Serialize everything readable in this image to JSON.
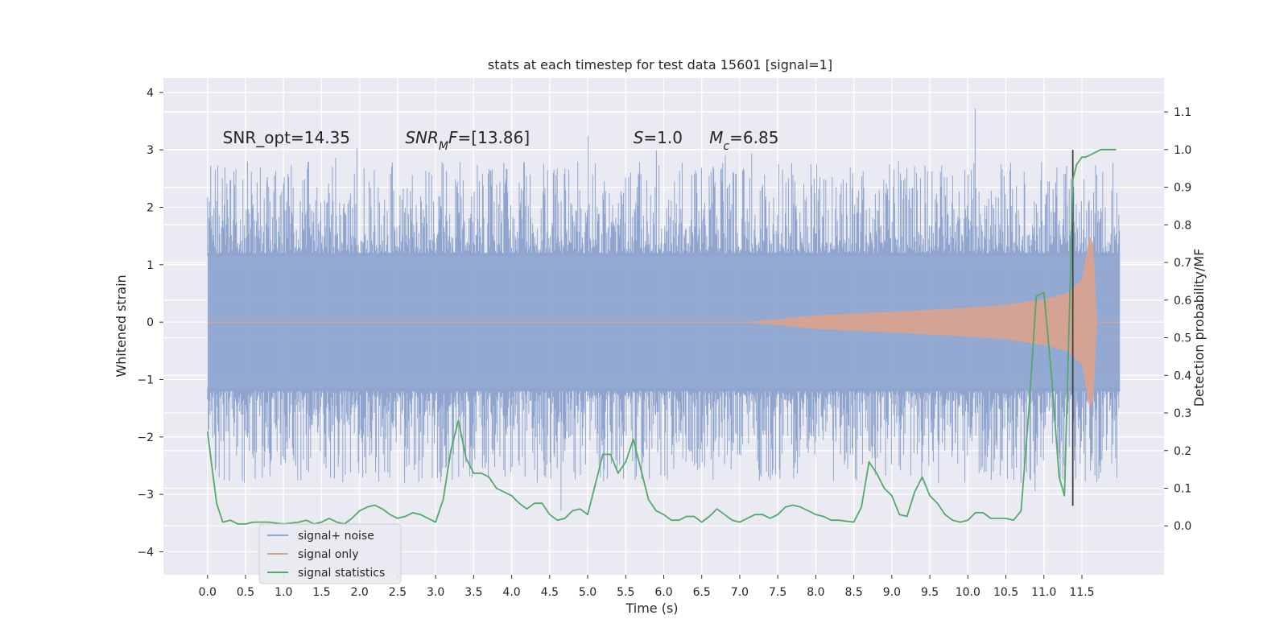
{
  "chart_data": {
    "type": "line",
    "title": "stats at each timestep for test data 15601 [signal=1]",
    "xlabel": "Time (s)",
    "ylabel_left": "Whitened strain",
    "ylabel_right": "Detection probability/MF",
    "xlim": [
      -0.58,
      12.58
    ],
    "ylim_left": [
      -4.4,
      4.25
    ],
    "ylim_right": [
      -0.13,
      1.19
    ],
    "xticks": [
      0.0,
      0.5,
      1.0,
      1.5,
      2.0,
      2.5,
      3.0,
      3.5,
      4.0,
      4.5,
      5.0,
      5.5,
      6.0,
      6.5,
      7.0,
      7.5,
      8.0,
      8.5,
      9.0,
      9.5,
      10.0,
      10.5,
      11.0,
      11.5
    ],
    "xtick_labels": [
      "0.0",
      "0.5",
      "1.0",
      "1.5",
      "2.0",
      "2.5",
      "3.0",
      "3.5",
      "4.0",
      "4.5",
      "5.0",
      "5.5",
      "6.0",
      "6.5",
      "7.0",
      "7.5",
      "8.0",
      "8.5",
      "9.0",
      "9.5",
      "10.0",
      "10.5",
      "11.0",
      "11.5"
    ],
    "yticks_left": [
      4,
      3,
      2,
      1,
      0,
      -1,
      -2,
      -3,
      -4
    ],
    "yticks_left_labels": [
      "4",
      "3",
      "2",
      "1",
      "0",
      "−1",
      "−2",
      "−3",
      "−4"
    ],
    "yticks_right": [
      1.1,
      1.0,
      0.9,
      0.8,
      0.7,
      0.6,
      0.5,
      0.4,
      0.3,
      0.2,
      0.1,
      0.0
    ],
    "yticks_right_labels": [
      "1.1",
      "1.0",
      "0.9",
      "0.8",
      "0.7",
      "0.6",
      "0.5",
      "0.4",
      "0.3",
      "0.2",
      "0.1",
      "0.0"
    ],
    "grid": true,
    "legend_position": "lower-left",
    "annotations": [
      {
        "text": "SNR_opt=14.35",
        "x": 0.2,
        "y": 3.2
      },
      {
        "text": "SNR_MF=[13.86]",
        "x": 2.6,
        "y": 3.2
      },
      {
        "text": "S=1.0",
        "x": 5.6,
        "y": 3.2
      },
      {
        "text": "M_c=6.85",
        "x": 6.6,
        "y": 3.2
      }
    ],
    "vertical_line": {
      "x": 11.38,
      "y_range": [
        -3.2,
        3.0
      ],
      "color": "#404040"
    },
    "series": [
      {
        "name": "signal+ noise",
        "color": "#8fa5cf",
        "axis": "left",
        "x_range": [
          0.0,
          12.0
        ],
        "core_amplitude": 1.2,
        "spike_envelope": [
          -3.8,
          3.85
        ]
      },
      {
        "name": "signal only",
        "color": "#d7a28f",
        "axis": "left",
        "envelope_x": [
          0.0,
          7.0,
          7.5,
          8.0,
          9.0,
          10.0,
          10.5,
          11.0,
          11.3,
          11.5,
          11.6,
          11.65,
          11.7,
          12.0
        ],
        "envelope_amp": [
          0.0,
          0.0,
          0.05,
          0.12,
          0.18,
          0.25,
          0.3,
          0.4,
          0.5,
          0.75,
          1.5,
          1.35,
          0.0,
          0.0
        ]
      },
      {
        "name": "signal statistics",
        "color": "#55a868",
        "axis": "right",
        "x": [
          0.0,
          0.05,
          0.12,
          0.2,
          0.3,
          0.4,
          0.5,
          0.6,
          0.7,
          0.8,
          1.0,
          1.2,
          1.3,
          1.4,
          1.5,
          1.6,
          1.7,
          1.8,
          1.9,
          2.0,
          2.1,
          2.2,
          2.3,
          2.4,
          2.5,
          2.6,
          2.7,
          2.8,
          2.9,
          3.0,
          3.1,
          3.2,
          3.3,
          3.4,
          3.5,
          3.6,
          3.7,
          3.8,
          4.0,
          4.1,
          4.2,
          4.3,
          4.4,
          4.5,
          4.6,
          4.7,
          4.8,
          4.9,
          5.0,
          5.1,
          5.2,
          5.3,
          5.4,
          5.5,
          5.6,
          5.7,
          5.8,
          5.9,
          6.0,
          6.1,
          6.2,
          6.3,
          6.4,
          6.5,
          6.6,
          6.7,
          6.8,
          6.9,
          7.0,
          7.2,
          7.3,
          7.4,
          7.5,
          7.6,
          7.7,
          7.8,
          7.9,
          8.0,
          8.1,
          8.2,
          8.3,
          8.5,
          8.6,
          8.7,
          8.8,
          8.9,
          9.0,
          9.1,
          9.2,
          9.3,
          9.4,
          9.5,
          9.6,
          9.7,
          9.8,
          9.9,
          10.0,
          10.1,
          10.2,
          10.3,
          10.4,
          10.5,
          10.6,
          10.7,
          10.8,
          10.9,
          11.0,
          11.1,
          11.2,
          11.27,
          11.32,
          11.38,
          11.43,
          11.5,
          11.55,
          11.65,
          11.75,
          11.85,
          11.95
        ],
        "y": [
          0.25,
          0.17,
          0.06,
          0.01,
          0.015,
          0.005,
          0.005,
          0.01,
          0.01,
          0.01,
          0.005,
          0.01,
          0.015,
          0.005,
          0.01,
          0.02,
          0.01,
          0.005,
          0.02,
          0.04,
          0.05,
          0.055,
          0.045,
          0.03,
          0.02,
          0.025,
          0.035,
          0.03,
          0.02,
          0.01,
          0.07,
          0.2,
          0.28,
          0.18,
          0.14,
          0.14,
          0.13,
          0.1,
          0.08,
          0.06,
          0.045,
          0.06,
          0.06,
          0.03,
          0.015,
          0.02,
          0.04,
          0.045,
          0.03,
          0.11,
          0.19,
          0.19,
          0.14,
          0.17,
          0.23,
          0.15,
          0.07,
          0.04,
          0.03,
          0.015,
          0.015,
          0.025,
          0.025,
          0.01,
          0.025,
          0.045,
          0.03,
          0.015,
          0.01,
          0.03,
          0.03,
          0.02,
          0.03,
          0.05,
          0.055,
          0.05,
          0.04,
          0.03,
          0.025,
          0.015,
          0.015,
          0.01,
          0.05,
          0.17,
          0.14,
          0.1,
          0.08,
          0.03,
          0.025,
          0.09,
          0.13,
          0.08,
          0.06,
          0.03,
          0.015,
          0.01,
          0.015,
          0.035,
          0.035,
          0.02,
          0.02,
          0.02,
          0.015,
          0.04,
          0.3,
          0.61,
          0.62,
          0.4,
          0.13,
          0.08,
          0.45,
          0.92,
          0.96,
          0.98,
          0.98,
          0.99,
          1.0,
          1.0,
          1.0
        ]
      }
    ]
  }
}
